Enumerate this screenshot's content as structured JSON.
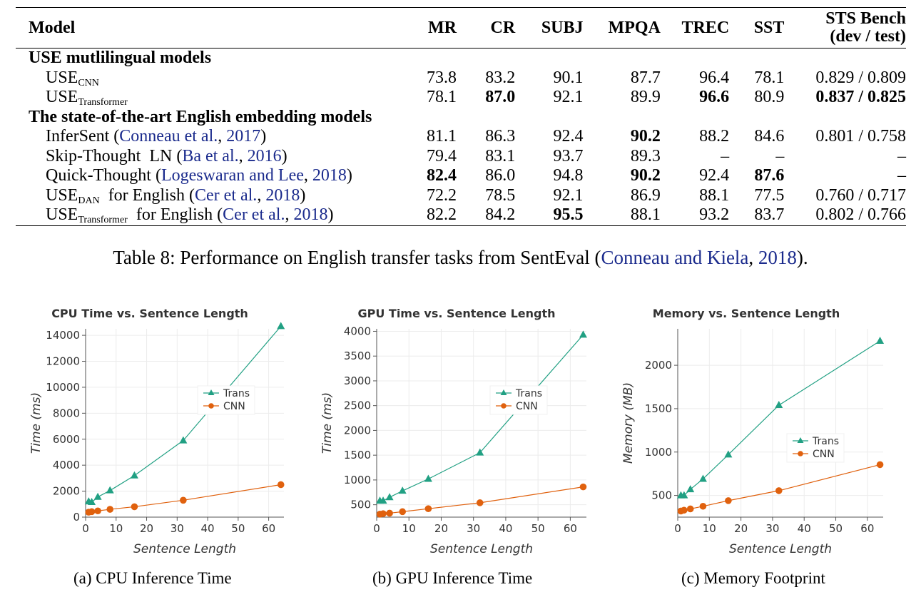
{
  "table": {
    "headers": [
      "Model",
      "MR",
      "CR",
      "SUBJ",
      "MPQA",
      "TREC",
      "SST",
      "STS Bench",
      "(dev / test)"
    ],
    "sections": [
      {
        "title": "USE mutlilingual models",
        "rows": [
          {
            "name_base": "USE",
            "name_sub": "CNN",
            "name_rest": "",
            "cite": "",
            "cite_year": "",
            "values": [
              "73.8",
              "83.2",
              "90.1",
              "87.7",
              "96.4",
              "78.1",
              "0.829 / 0.809"
            ],
            "bold": [
              false,
              false,
              false,
              false,
              false,
              false,
              false
            ]
          },
          {
            "name_base": "USE",
            "name_sub": "Transformer",
            "name_rest": "",
            "cite": "",
            "cite_year": "",
            "values": [
              "78.1",
              "87.0",
              "92.1",
              "89.9",
              "96.6",
              "80.9",
              "0.837 / 0.825"
            ],
            "bold": [
              false,
              true,
              false,
              false,
              true,
              false,
              true
            ]
          }
        ]
      },
      {
        "title": "The state-of-the-art English embedding models",
        "rows": [
          {
            "name_base": "InferSent",
            "name_sub": "",
            "name_rest": "",
            "cite": "Conneau et al.",
            "cite_year": "2017",
            "values": [
              "81.1",
              "86.3",
              "92.4",
              "90.2",
              "88.2",
              "84.6",
              "0.801 / 0.758"
            ],
            "bold": [
              false,
              false,
              false,
              true,
              false,
              false,
              false
            ]
          },
          {
            "name_base": "Skip-Thought  LN",
            "name_sub": "",
            "name_rest": "",
            "cite": "Ba et al.",
            "cite_year": "2016",
            "values": [
              "79.4",
              "83.1",
              "93.7",
              "89.3",
              "–",
              "–",
              "–"
            ],
            "bold": [
              false,
              false,
              false,
              false,
              false,
              false,
              false
            ]
          },
          {
            "name_base": "Quick-Thought",
            "name_sub": "",
            "name_rest": "",
            "cite": "Logeswaran and Lee",
            "cite_year": "2018",
            "values": [
              "82.4",
              "86.0",
              "94.8",
              "90.2",
              "92.4",
              "87.6",
              "–"
            ],
            "bold": [
              true,
              false,
              false,
              true,
              false,
              true,
              false
            ]
          },
          {
            "name_base": "USE",
            "name_sub": "DAN",
            "name_rest": "  for English",
            "cite": "Cer et al.",
            "cite_year": "2018",
            "values": [
              "72.2",
              "78.5",
              "92.1",
              "86.9",
              "88.1",
              "77.5",
              "0.760 / 0.717"
            ],
            "bold": [
              false,
              false,
              false,
              false,
              false,
              false,
              false
            ]
          },
          {
            "name_base": "USE",
            "name_sub": "Transformer",
            "name_rest": "  for English",
            "cite": "Cer et al.",
            "cite_year": "2018",
            "values": [
              "82.2",
              "84.2",
              "95.5",
              "88.1",
              "93.2",
              "83.7",
              "0.802 / 0.766"
            ],
            "bold": [
              false,
              false,
              true,
              false,
              false,
              false,
              false
            ]
          }
        ]
      }
    ]
  },
  "caption": {
    "prefix": "Table 8: Performance on English transfer tasks from SentEval (",
    "cite": "Conneau and Kiela",
    "sep": ", ",
    "year": "2018",
    "suffix": ")."
  },
  "colors": {
    "trans": "#21a083",
    "cnn": "#e0610e",
    "link": "#1a2a8c"
  },
  "chart_data": [
    {
      "type": "line",
      "title": "CPU Time vs. Sentence Length",
      "xlabel": "Sentence Length",
      "ylabel": "Time (ms)",
      "xlim": [
        0,
        65
      ],
      "ylim": [
        0,
        14500
      ],
      "xticks": [
        0,
        10,
        20,
        30,
        40,
        50,
        60
      ],
      "yticks": [
        0,
        2000,
        4000,
        6000,
        8000,
        10000,
        12000,
        14000
      ],
      "legend": "center-right",
      "grid": true,
      "series": [
        {
          "name": "Trans",
          "marker": "triangle",
          "color": "#21a083",
          "x": [
            1,
            2,
            4,
            8,
            16,
            32,
            64
          ],
          "y": [
            1200,
            1150,
            1550,
            2050,
            3200,
            5900,
            14700
          ]
        },
        {
          "name": "CNN",
          "marker": "circle",
          "color": "#e0610e",
          "x": [
            1,
            2,
            4,
            8,
            16,
            32,
            64
          ],
          "y": [
            380,
            420,
            480,
            600,
            800,
            1300,
            2500
          ]
        }
      ],
      "caption": "(a)  CPU Inference Time"
    },
    {
      "type": "line",
      "title": "GPU Time vs. Sentence Length",
      "xlabel": "Sentence Length",
      "ylabel": "Time (ms)",
      "xlim": [
        0,
        65
      ],
      "ylim": [
        250,
        4050
      ],
      "xticks": [
        0,
        10,
        20,
        30,
        40,
        50,
        60
      ],
      "yticks": [
        500,
        1000,
        1500,
        2000,
        2500,
        3000,
        3500,
        4000
      ],
      "legend": "center-right",
      "grid": true,
      "series": [
        {
          "name": "Trans",
          "marker": "triangle",
          "color": "#21a083",
          "x": [
            1,
            2,
            4,
            8,
            16,
            32,
            64
          ],
          "y": [
            580,
            580,
            650,
            780,
            1020,
            1550,
            3930
          ]
        },
        {
          "name": "CNN",
          "marker": "circle",
          "color": "#e0610e",
          "x": [
            1,
            2,
            4,
            8,
            16,
            32,
            64
          ],
          "y": [
            310,
            320,
            330,
            360,
            420,
            540,
            860
          ]
        }
      ],
      "caption": "(b)  GPU Inference Time"
    },
    {
      "type": "line",
      "title": "Memory vs. Sentence Length",
      "xlabel": "Sentence Length",
      "ylabel": "Memory (MB)",
      "xlim": [
        0,
        65
      ],
      "ylim": [
        250,
        2420
      ],
      "xticks": [
        0,
        10,
        20,
        30,
        40,
        50,
        60
      ],
      "yticks": [
        500,
        1000,
        1500,
        2000
      ],
      "legend": "center-right",
      "grid": true,
      "series": [
        {
          "name": "Trans",
          "marker": "triangle",
          "color": "#21a083",
          "x": [
            1,
            2,
            4,
            8,
            16,
            32,
            64
          ],
          "y": [
            500,
            500,
            570,
            690,
            970,
            1540,
            2280
          ]
        },
        {
          "name": "CNN",
          "marker": "circle",
          "color": "#e0610e",
          "x": [
            1,
            2,
            4,
            8,
            16,
            32,
            64
          ],
          "y": [
            320,
            330,
            345,
            375,
            440,
            555,
            855
          ]
        }
      ],
      "caption": "(c)  Memory Footprint"
    }
  ]
}
